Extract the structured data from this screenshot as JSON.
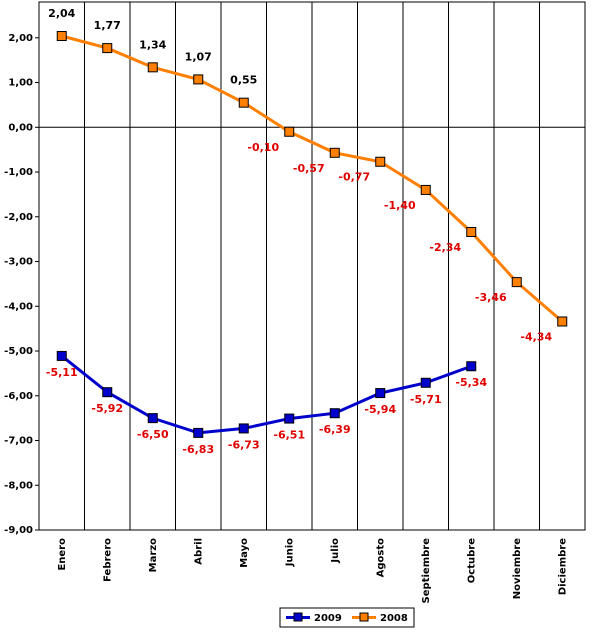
{
  "chart_data": {
    "type": "line",
    "categories": [
      "Enero",
      "Febrero",
      "Marzo",
      "Abril",
      "Mayo",
      "Junio",
      "Julio",
      "Agosto",
      "Septiembre",
      "Octubre",
      "Noviembre",
      "Diciembre"
    ],
    "series": [
      {
        "name": "2009",
        "color": "#0000cc",
        "values": [
          -5.11,
          -5.92,
          -6.5,
          -6.83,
          -6.73,
          -6.51,
          -6.39,
          -5.94,
          -5.71,
          -5.34,
          null,
          null
        ],
        "value_labels": [
          "-5,11",
          "-5,92",
          "-6,50",
          "-6,83",
          "-6,73",
          "-6,51",
          "-6,39",
          "-5,94",
          "-5,71",
          "-5,34",
          null,
          null
        ]
      },
      {
        "name": "2008",
        "color": "#ff7f00",
        "values": [
          2.04,
          1.77,
          1.34,
          1.07,
          0.55,
          -0.1,
          -0.57,
          -0.77,
          -1.4,
          -2.34,
          -3.46,
          -4.34
        ],
        "value_labels": [
          "2,04",
          "1,77",
          "1,34",
          "1,07",
          "0,55",
          "-0,10",
          "-0,57",
          "-0,77",
          "-1,40",
          "-2,34",
          "-3,46",
          "-4,34"
        ]
      }
    ],
    "ylim": [
      -9,
      2.8
    ],
    "yticks": [
      {
        "value": -9,
        "label": "-9,00"
      },
      {
        "value": -8,
        "label": "-8,00"
      },
      {
        "value": -7,
        "label": "-7,00"
      },
      {
        "value": -6,
        "label": "-6,00"
      },
      {
        "value": -5,
        "label": "-5,00"
      },
      {
        "value": -4,
        "label": "-4,00"
      },
      {
        "value": -3,
        "label": "-3,00"
      },
      {
        "value": -2,
        "label": "-2,00"
      },
      {
        "value": -1,
        "label": "-1,00"
      },
      {
        "value": 0,
        "label": "0,00"
      },
      {
        "value": 1,
        "label": "1,00"
      },
      {
        "value": 2,
        "label": "2,00"
      }
    ],
    "vertical_grid": true,
    "legend": "bottom"
  }
}
